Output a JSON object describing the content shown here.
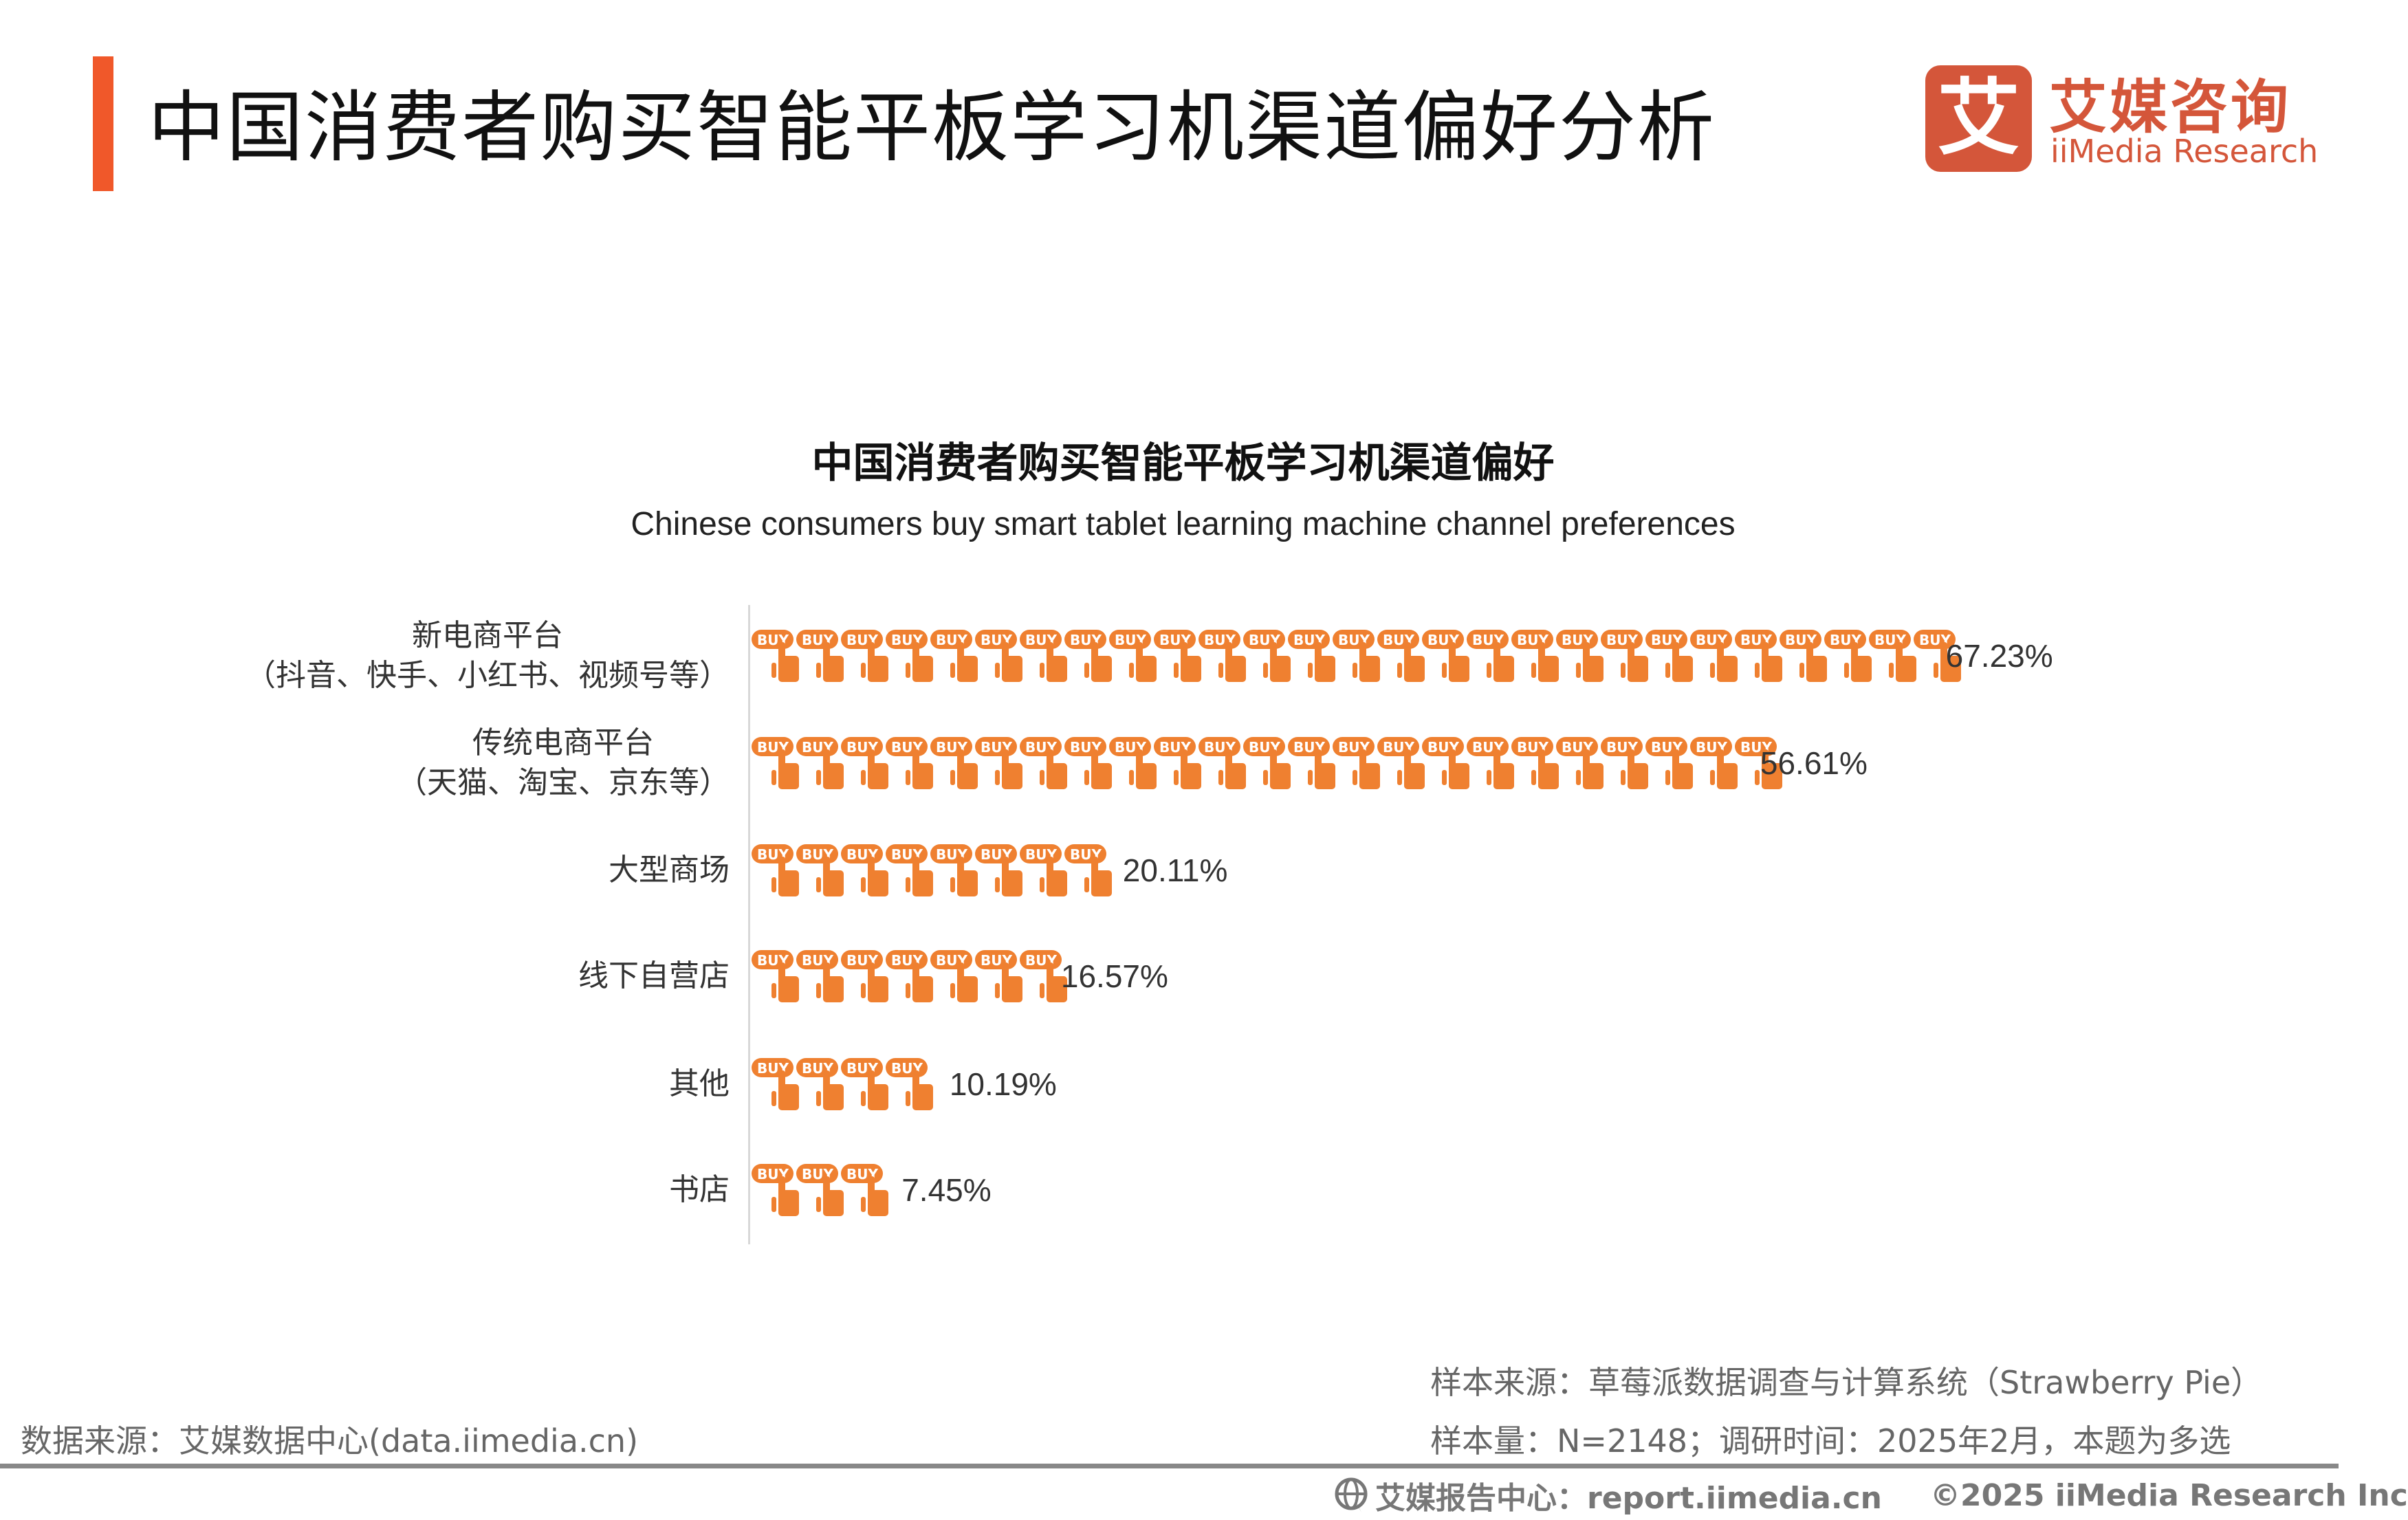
{
  "header": {
    "title": "中国消费者购买智能平板学习机渠道偏好分析",
    "accent_color": "#f0582a"
  },
  "logo": {
    "mark": "艾",
    "cn": "艾媒咨询",
    "en": "iiMedia Research",
    "color": "#d4563a"
  },
  "chart_data": {
    "type": "bar",
    "orientation": "horizontal",
    "style": "pictograph",
    "icon": "buy-button-hand-icon",
    "bar_color": "#ef8030",
    "title": "中国消费者购买智能平板学习机渠道偏好",
    "subtitle": "Chinese consumers buy smart tablet learning machine channel preferences",
    "categories": [
      [
        "新电商平台",
        "（抖音、快手、小红书、视频号等）"
      ],
      [
        "传统电商平台",
        "（天猫、淘宝、京东等）"
      ],
      [
        "大型商场"
      ],
      [
        "线下自营店"
      ],
      [
        "其他"
      ],
      [
        "书店"
      ]
    ],
    "values": [
      67.23,
      56.61,
      20.11,
      16.57,
      10.19,
      7.45
    ],
    "value_labels": [
      "67.23%",
      "56.61%",
      "20.11%",
      "16.57%",
      "10.19%",
      "7.45%"
    ],
    "unit": "%",
    "xlim": [
      0,
      100
    ],
    "grid": false
  },
  "footer": {
    "data_source": "数据来源：艾媒数据中心(data.iimedia.cn)",
    "sample_source": "样本来源：草莓派数据调查与计算系统（Strawberry Pie）",
    "sample_size": "样本量：N=2148；调研时间：2025年2月，本题为多选",
    "report_center": "艾媒报告中心：report.iimedia.cn",
    "copyright": "©2025  iiMedia Research  Inc"
  }
}
